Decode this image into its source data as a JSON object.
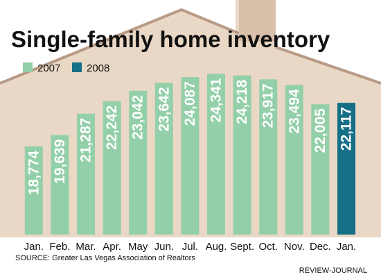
{
  "chart_data": {
    "type": "bar",
    "title": "Single-family home inventory",
    "categories": [
      "Jan.",
      "Feb.",
      "Mar.",
      "Apr.",
      "May",
      "Jun.",
      "Jul.",
      "Aug.",
      "Sept.",
      "Oct.",
      "Nov.",
      "Dec.",
      "Jan."
    ],
    "values": [
      18774,
      19639,
      21287,
      22242,
      23042,
      23642,
      24087,
      24341,
      24218,
      23917,
      23494,
      22005,
      22117
    ],
    "value_labels": [
      "18,774",
      "19,639",
      "21,287",
      "22,242",
      "23,042",
      "23,642",
      "24,087",
      "24,341",
      "24,218",
      "23,917",
      "23,494",
      "22,005",
      "22,117"
    ],
    "series_year": [
      "2007",
      "2007",
      "2007",
      "2007",
      "2007",
      "2007",
      "2007",
      "2007",
      "2007",
      "2007",
      "2007",
      "2007",
      "2008"
    ],
    "legend": [
      {
        "name": "2007",
        "color": "#93cfa8"
      },
      {
        "name": "2008",
        "color": "#156f87"
      }
    ],
    "legend_position": "top-left",
    "xlabel": "",
    "ylabel": "",
    "ylim": [
      12000,
      25000
    ],
    "grid": false,
    "value_labels_rotated": true,
    "background_shape": "house silhouette"
  },
  "source": "SOURCE: Greater Las Vegas Association of Realtors",
  "credit": "REVIEW-JOURNAL",
  "colors": {
    "bar_2007": "#93cfa8",
    "bar_2008": "#156f87",
    "house_fill": "#ead8c6",
    "house_stroke": "#b79b86",
    "label_text": "#ffffff"
  }
}
